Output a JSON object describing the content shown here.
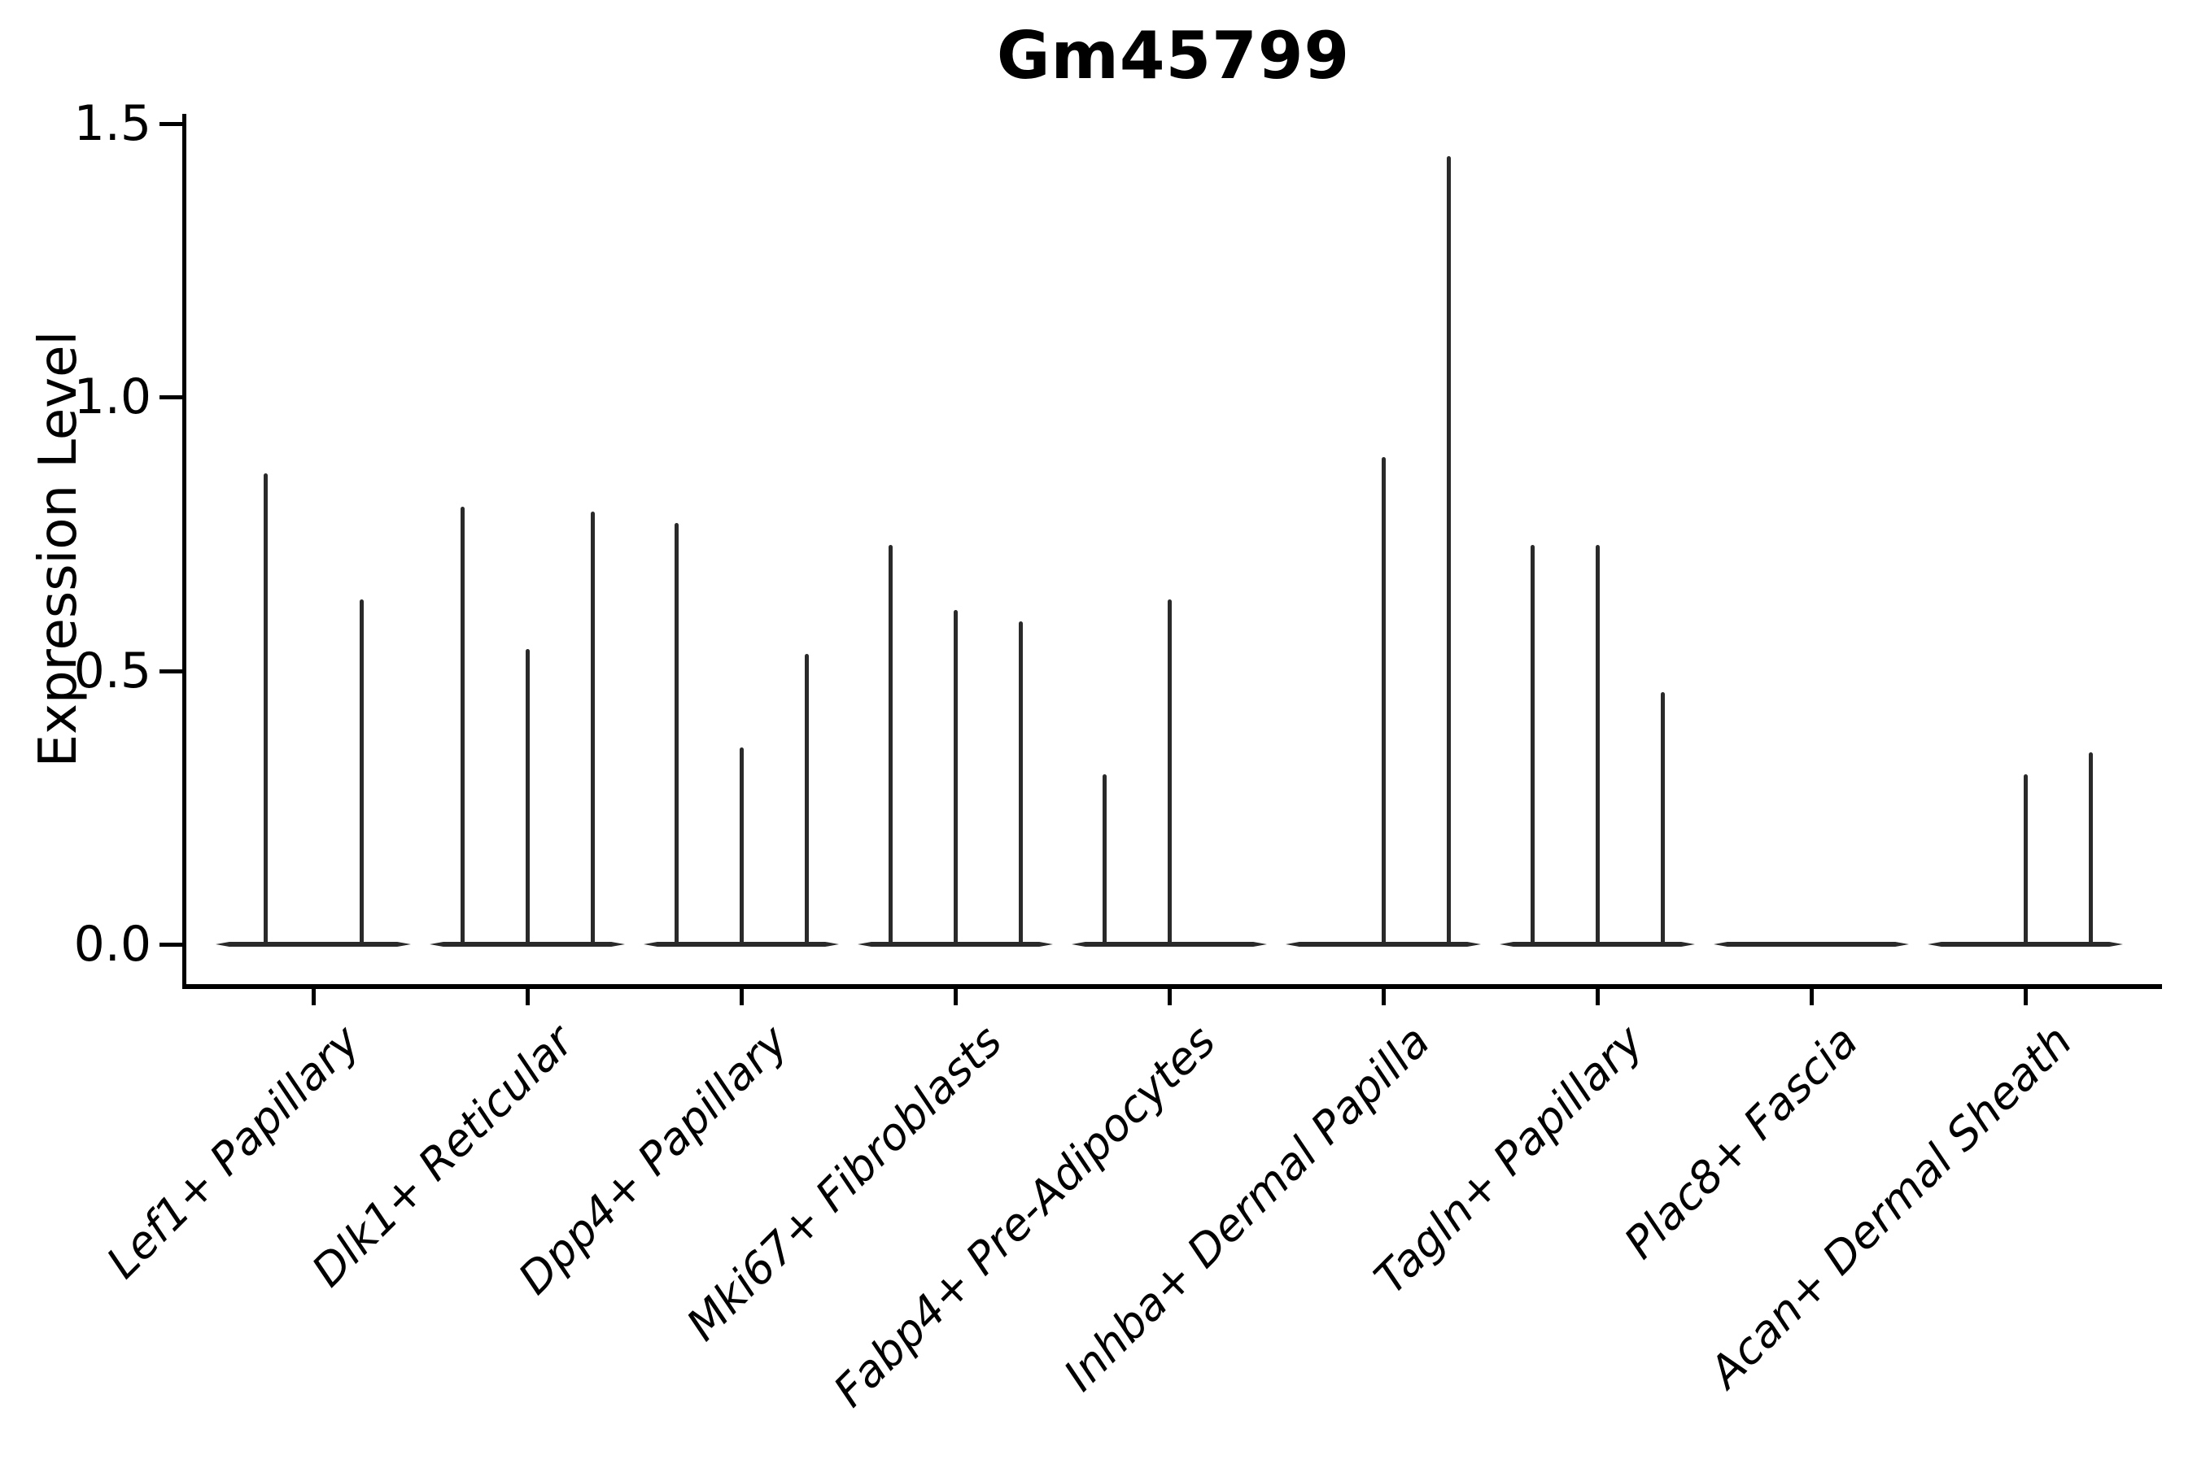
{
  "title": "Gm45799",
  "y_axis": {
    "label": "Expression Level",
    "tick_labels": [
      "0.0",
      "0.5",
      "1.0",
      "1.5"
    ]
  },
  "chart_data": {
    "type": "violin",
    "title": "Gm45799",
    "xlabel": "",
    "ylabel": "Expression Level",
    "ylim": [
      0,
      1.5
    ],
    "yticks": [
      0.0,
      0.5,
      1.0,
      1.5
    ],
    "grid": false,
    "legend": "none",
    "categories": [
      "Lef1+ Papillary",
      "Dlk1+ Reticular",
      "Dpp4+ Papillary",
      "Mki67+ Fibroblasts",
      "Fabp4+ Pre-Adipocytes",
      "Inhba+ Dermal Papilla",
      "Tagln+ Papillary",
      "Plac8+ Fascia",
      "Acan+ Dermal Sheath"
    ],
    "series": [
      {
        "category": "Lef1+ Papillary",
        "violin_slots": 2,
        "peak_values": [
          0.86,
          0.63
        ]
      },
      {
        "category": "Dlk1+ Reticular",
        "violin_slots": 3,
        "peak_values": [
          0.8,
          0.54,
          0.79
        ]
      },
      {
        "category": "Dpp4+ Papillary",
        "violin_slots": 3,
        "peak_values": [
          0.77,
          0.36,
          0.53
        ]
      },
      {
        "category": "Mki67+ Fibroblasts",
        "violin_slots": 3,
        "peak_values": [
          0.73,
          0.61,
          0.59
        ]
      },
      {
        "category": "Fabp4+ Pre-Adipocytes",
        "violin_slots": 3,
        "peak_values": [
          0.31,
          0.63,
          null
        ]
      },
      {
        "category": "Inhba+ Dermal Papilla",
        "violin_slots": 3,
        "peak_values": [
          null,
          0.89,
          1.44
        ]
      },
      {
        "category": "Tagln+ Papillary",
        "violin_slots": 3,
        "peak_values": [
          0.73,
          0.73,
          0.46
        ]
      },
      {
        "category": "Plac8+ Fascia",
        "violin_slots": 3,
        "peak_values": [
          null,
          null,
          null
        ]
      },
      {
        "category": "Acan+ Dermal Sheath",
        "violin_slots": 3,
        "peak_values": [
          null,
          0.31,
          0.35
        ]
      }
    ],
    "colors": {
      "violin_line": "#2a2a2a",
      "axis": "#000000",
      "text": "#000000",
      "background": "#ffffff"
    }
  }
}
